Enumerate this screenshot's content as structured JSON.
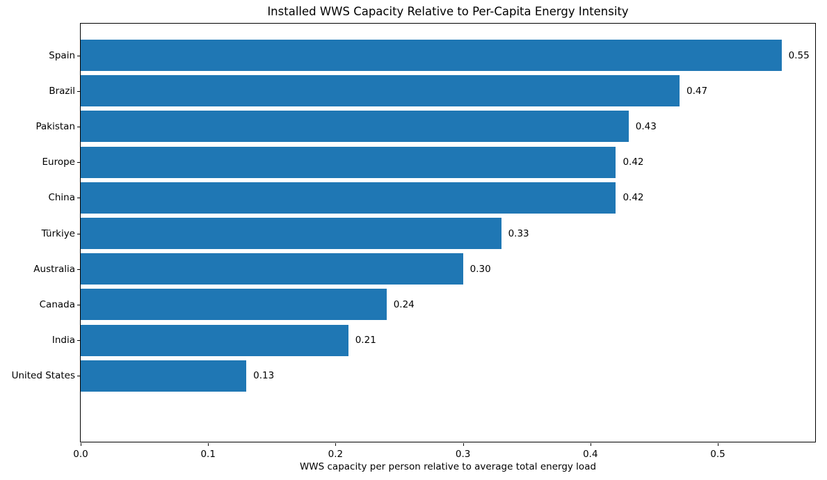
{
  "chart_data": {
    "type": "bar",
    "orientation": "horizontal",
    "title": "Installed WWS Capacity Relative to Per-Capita Energy Intensity",
    "xlabel": "WWS capacity per person relative to average total energy load",
    "ylabel": "",
    "categories": [
      "Spain",
      "Brazil",
      "Pakistan",
      "Europe",
      "China",
      "Türkiye",
      "Australia",
      "Canada",
      "India",
      "United States"
    ],
    "values": [
      0.55,
      0.47,
      0.43,
      0.42,
      0.42,
      0.33,
      0.3,
      0.24,
      0.21,
      0.13
    ],
    "value_labels": [
      "0.55",
      "0.47",
      "0.43",
      "0.42",
      "0.42",
      "0.33",
      "0.30",
      "0.24",
      "0.21",
      "0.13"
    ],
    "xticks": [
      0.0,
      0.1,
      0.2,
      0.3,
      0.4,
      0.5
    ],
    "xtick_labels": [
      "0.0",
      "0.1",
      "0.2",
      "0.3",
      "0.4",
      "0.5"
    ],
    "xlim": [
      0,
      0.5775
    ],
    "grid": false,
    "legend": null,
    "bar_color": "#1f77b4",
    "text_color": "#000000",
    "background_color": "#ffffff"
  }
}
